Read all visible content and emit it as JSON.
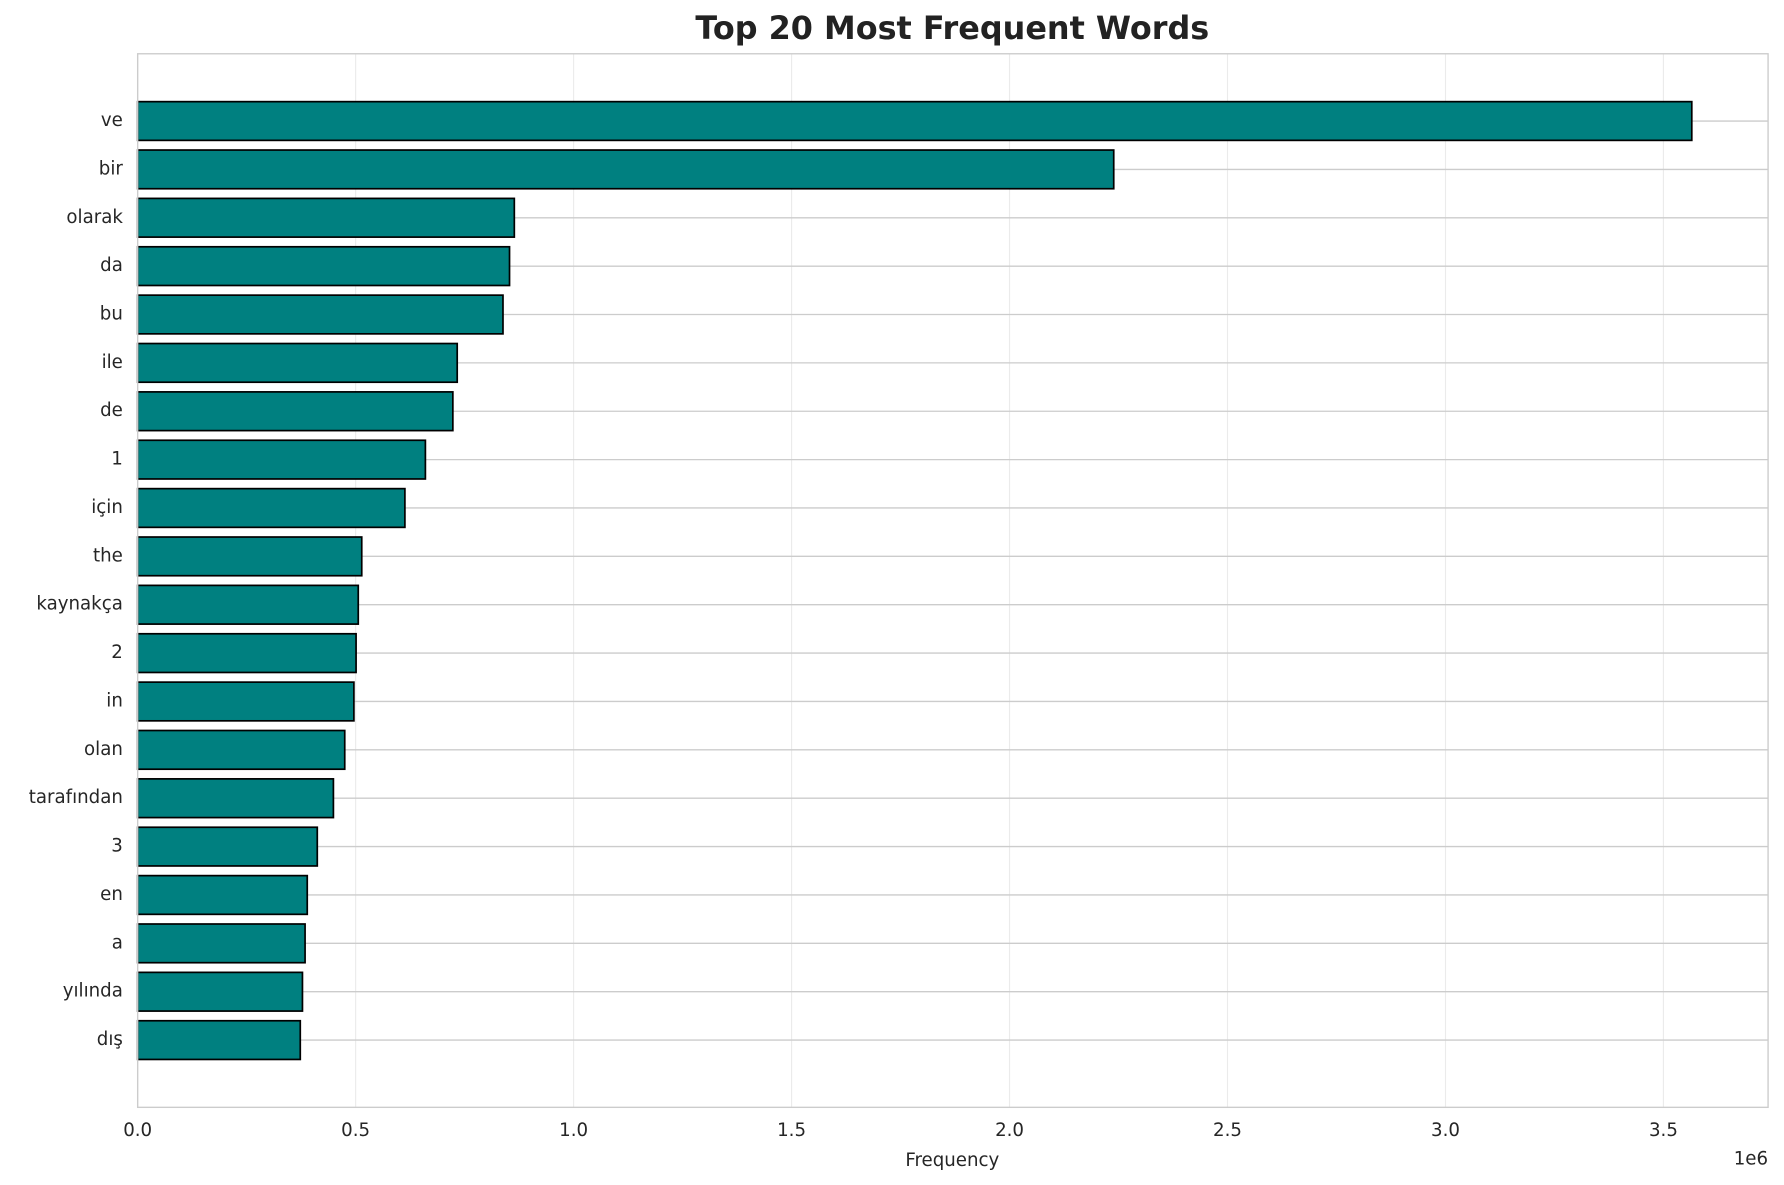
{
  "chart_data": {
    "type": "barh",
    "title": "Top 20 Most Frequent Words",
    "xlabel": "Frequency",
    "x_offset_label": "1e6",
    "categories": [
      "ve",
      "bir",
      "olarak",
      "da",
      "bu",
      "ile",
      "de",
      "1",
      "için",
      "the",
      "kaynakça",
      "2",
      "in",
      "olan",
      "tarafından",
      "3",
      "en",
      "a",
      "yılında",
      "dış"
    ],
    "values": [
      3565000,
      2239000,
      864000,
      853000,
      838000,
      733000,
      723000,
      660000,
      613000,
      514000,
      506000,
      501000,
      496000,
      475000,
      449000,
      412000,
      389000,
      384000,
      378000,
      373000
    ],
    "color": "#008080",
    "edgecolor": "#000000",
    "xlim": [
      0,
      3740000
    ],
    "xticks": [
      {
        "value": 0,
        "label": "0.0"
      },
      {
        "value": 500000,
        "label": "0.5"
      },
      {
        "value": 1000000,
        "label": "1.0"
      },
      {
        "value": 1500000,
        "label": "1.5"
      },
      {
        "value": 2000000,
        "label": "2.0"
      },
      {
        "value": 2500000,
        "label": "2.5"
      },
      {
        "value": 3000000,
        "label": "3.0"
      },
      {
        "value": 3500000,
        "label": "3.5"
      }
    ],
    "grid": true
  }
}
